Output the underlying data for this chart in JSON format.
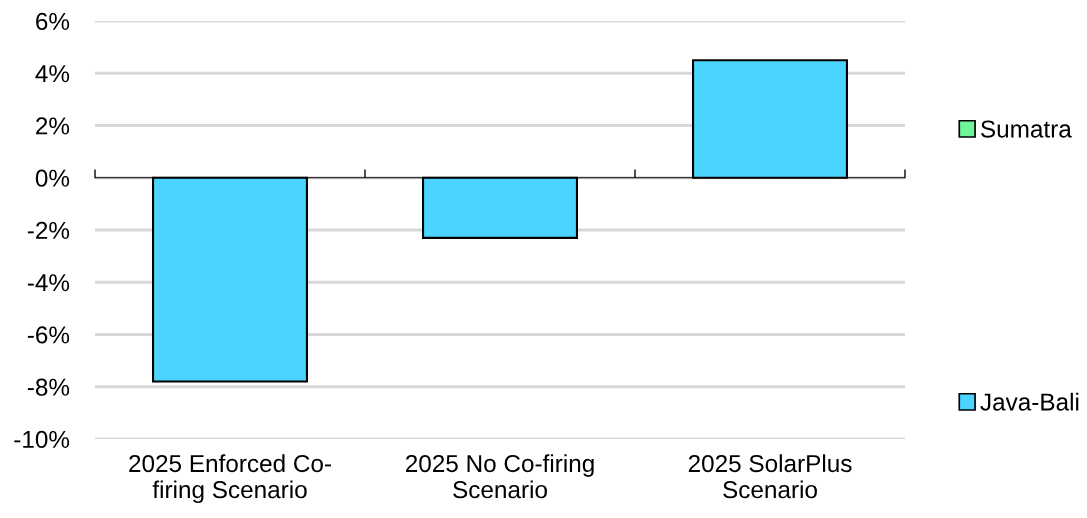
{
  "chart_data": {
    "type": "bar",
    "stacked": true,
    "categories": [
      "2025 Enforced Co-\nfiring Scenario",
      "2025 No Co-firing\nScenario",
      "2025 SolarPlus\nScenario"
    ],
    "series": [
      {
        "name": "Java-Bali",
        "color": "#4ad4ff",
        "values": [
          -7.8,
          -2.3,
          4.5
        ]
      },
      {
        "name": "Sumatra",
        "color": "#6ef59a",
        "values": [
          null,
          null,
          null
        ]
      }
    ],
    "ylim": [
      -10,
      6
    ],
    "yticks": [
      {
        "value": -10,
        "label": "-10%"
      },
      {
        "value": -8,
        "label": "-8%"
      },
      {
        "value": -6,
        "label": "-6%"
      },
      {
        "value": -4,
        "label": "-4%"
      },
      {
        "value": -2,
        "label": "-2%"
      },
      {
        "value": 0,
        "label": "0%"
      },
      {
        "value": 2,
        "label": "2%"
      },
      {
        "value": 4,
        "label": "4%"
      },
      {
        "value": 6,
        "label": "6%"
      }
    ],
    "grid": "y",
    "legend": "right"
  }
}
